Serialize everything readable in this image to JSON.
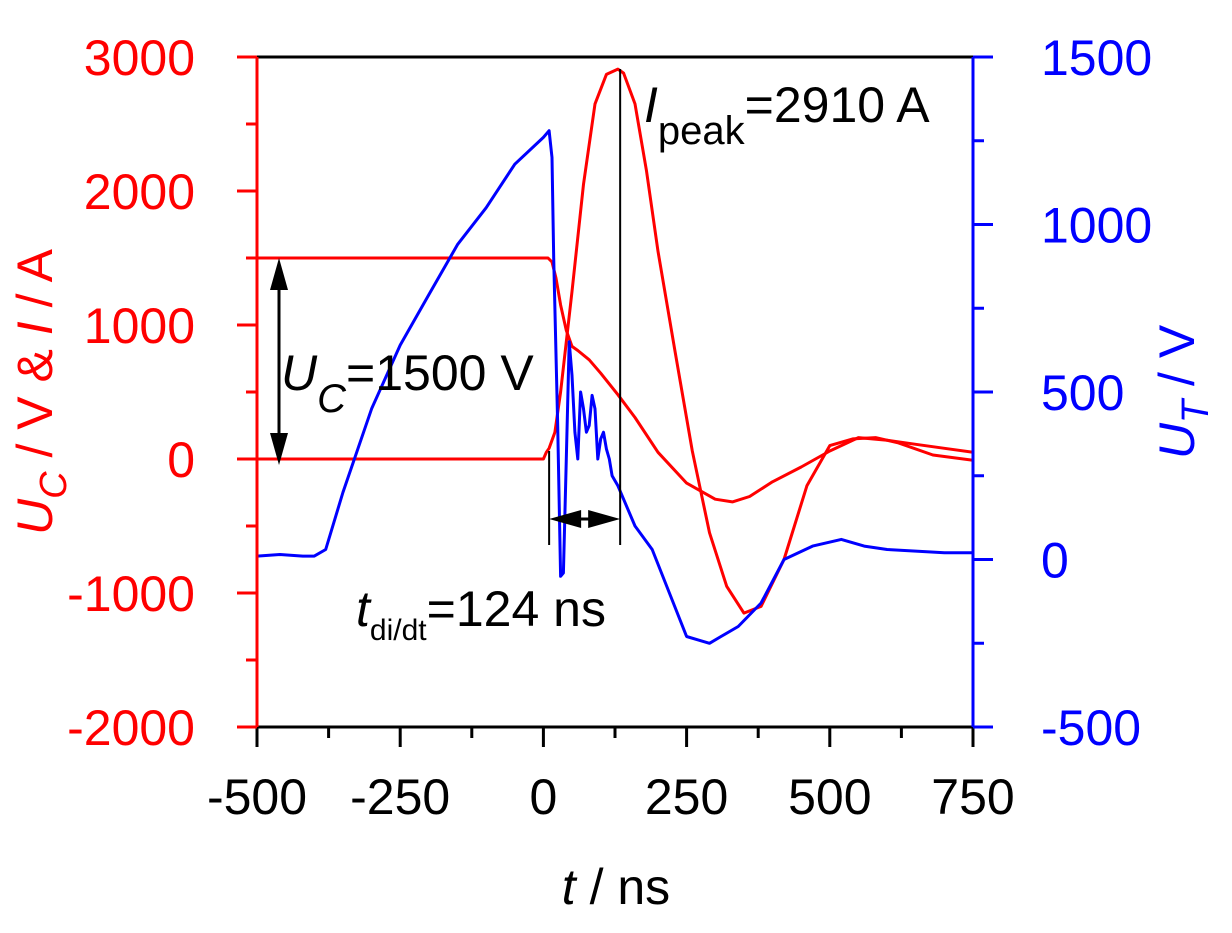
{
  "chart_data": {
    "type": "line",
    "x_axis": {
      "label_var": "t",
      "label_unit": " / ns",
      "range": [
        -500,
        750
      ],
      "tick_labels": [
        "-500",
        "-250",
        "0",
        "250",
        "500",
        "750"
      ],
      "tick_values": [
        -500,
        -250,
        0,
        250,
        500,
        750
      ],
      "minor_tick_values": [
        -375,
        -125,
        125,
        375,
        625
      ]
    },
    "y_left": {
      "color": "#ff0000",
      "range": [
        -2000,
        3000
      ],
      "tick_labels": [
        "-2000",
        "-1000",
        "0",
        "1000",
        "2000",
        "3000"
      ],
      "tick_values": [
        -2000,
        -1000,
        0,
        1000,
        2000,
        3000
      ],
      "minor_tick_values": [
        -1500,
        -500,
        500,
        1500,
        2500
      ],
      "title_var1": "U",
      "title_sub1": "C",
      "title_mid": " / V & ",
      "title_var2": "I",
      "title_unit": " / A"
    },
    "y_right": {
      "color": "#0000ff",
      "range": [
        -500,
        1500
      ],
      "tick_labels": [
        "-500",
        "0",
        "500",
        "1000",
        "1500"
      ],
      "tick_values": [
        -500,
        0,
        500,
        1000,
        1500
      ],
      "minor_tick_values": [
        -250,
        250,
        750,
        1250
      ],
      "title_var": "U",
      "title_sub": "T",
      "title_unit": " / V"
    },
    "series": [
      {
        "color": "#ff0000",
        "axis": "left",
        "x": [
          -500,
          -100,
          0,
          8,
          15,
          22,
          30,
          40,
          50,
          60,
          80,
          100,
          130,
          160,
          200,
          250,
          300,
          330,
          360,
          400,
          450,
          500,
          550,
          600,
          650,
          700,
          750
        ],
        "y": [
          1500,
          1500,
          1500,
          1500,
          1470,
          1350,
          1150,
          960,
          840,
          810,
          740,
          640,
          480,
          310,
          50,
          -180,
          -300,
          -320,
          -280,
          -170,
          -60,
          60,
          160,
          140,
          110,
          80,
          50
        ]
      },
      {
        "color": "#ff0000",
        "axis": "left",
        "x": [
          -500,
          -300,
          -100,
          0,
          5,
          10,
          20,
          30,
          50,
          70,
          90,
          110,
          130,
          140,
          160,
          180,
          200,
          230,
          260,
          290,
          320,
          350,
          380,
          420,
          460,
          500,
          540,
          580,
          620,
          680,
          750
        ],
        "y": [
          0,
          0,
          0,
          0,
          50,
          80,
          200,
          500,
          1250,
          2050,
          2650,
          2870,
          2910,
          2880,
          2650,
          2150,
          1550,
          800,
          60,
          -550,
          -950,
          -1150,
          -1100,
          -750,
          -200,
          100,
          150,
          160,
          120,
          30,
          -10
        ]
      },
      {
        "color": "#0000ff",
        "axis": "right",
        "x": [
          -500,
          -460,
          -420,
          -400,
          -380,
          -350,
          -300,
          -250,
          -200,
          -150,
          -100,
          -50,
          0,
          10,
          15,
          18,
          25,
          30,
          35,
          40,
          45,
          50,
          55,
          60,
          65,
          70,
          75,
          80,
          85,
          90,
          95,
          100,
          105,
          110,
          115,
          120,
          130,
          140,
          160,
          190,
          220,
          250,
          270,
          290,
          310,
          340,
          380,
          420,
          470,
          520,
          560,
          600,
          650,
          700,
          750
        ],
        "y": [
          10,
          15,
          10,
          10,
          30,
          200,
          450,
          640,
          790,
          940,
          1050,
          1180,
          1260,
          1280,
          1200,
          900,
          400,
          -50,
          -40,
          300,
          650,
          550,
          380,
          300,
          500,
          450,
          380,
          400,
          490,
          450,
          300,
          360,
          380,
          330,
          300,
          250,
          220,
          180,
          100,
          30,
          -100,
          -230,
          -240,
          -250,
          -230,
          -200,
          -130,
          0,
          40,
          60,
          40,
          30,
          25,
          20,
          20
        ]
      }
    ],
    "annotations": {
      "peak_var": "I",
      "peak_sub": "peak",
      "peak_text": "=2910 A",
      "uc_var": "U",
      "uc_sub": "C",
      "uc_text": "=1500 V",
      "t_var": "t",
      "t_sub": "di/dt",
      "t_text": "=124 ns",
      "marker_t_start": 10,
      "marker_t_end": 134
    },
    "grid": false,
    "legend": "none"
  }
}
